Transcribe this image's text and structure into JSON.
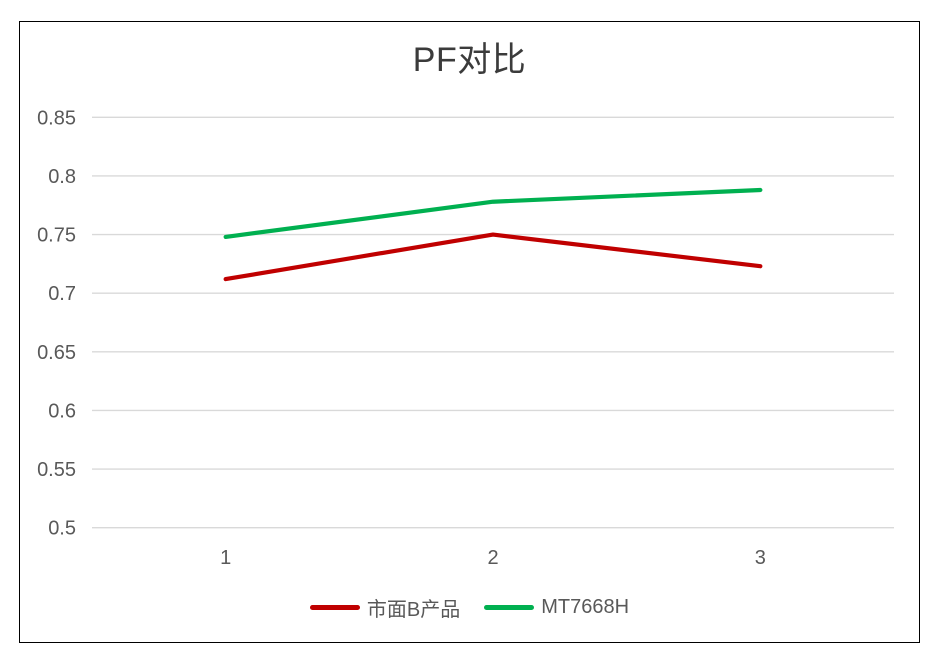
{
  "chart_data": {
    "type": "line",
    "title": "PF对比",
    "categories": [
      "1",
      "2",
      "3"
    ],
    "series": [
      {
        "name": "市面B产品",
        "values": [
          0.712,
          0.75,
          0.723
        ],
        "color": "#C00000"
      },
      {
        "name": "MT7668H",
        "values": [
          0.748,
          0.778,
          0.788
        ],
        "color": "#00B050"
      }
    ],
    "xlabel": "",
    "ylabel": "",
    "ylim": [
      0.5,
      0.85
    ],
    "yticks": [
      {
        "value": 0.85,
        "label": "0.85"
      },
      {
        "value": 0.8,
        "label": "0.8"
      },
      {
        "value": 0.75,
        "label": "0.75"
      },
      {
        "value": 0.7,
        "label": "0.7"
      },
      {
        "value": 0.65,
        "label": "0.65"
      },
      {
        "value": 0.6,
        "label": "0.6"
      },
      {
        "value": 0.55,
        "label": "0.55"
      },
      {
        "value": 0.5,
        "label": "0.5"
      }
    ],
    "grid": true,
    "legend_position": "bottom",
    "colors": {
      "gridline": "#D9D9D9",
      "tick_label": "#595959",
      "title": "#3b3b3b",
      "frame_border": "#000000",
      "background": "#ffffff"
    }
  }
}
